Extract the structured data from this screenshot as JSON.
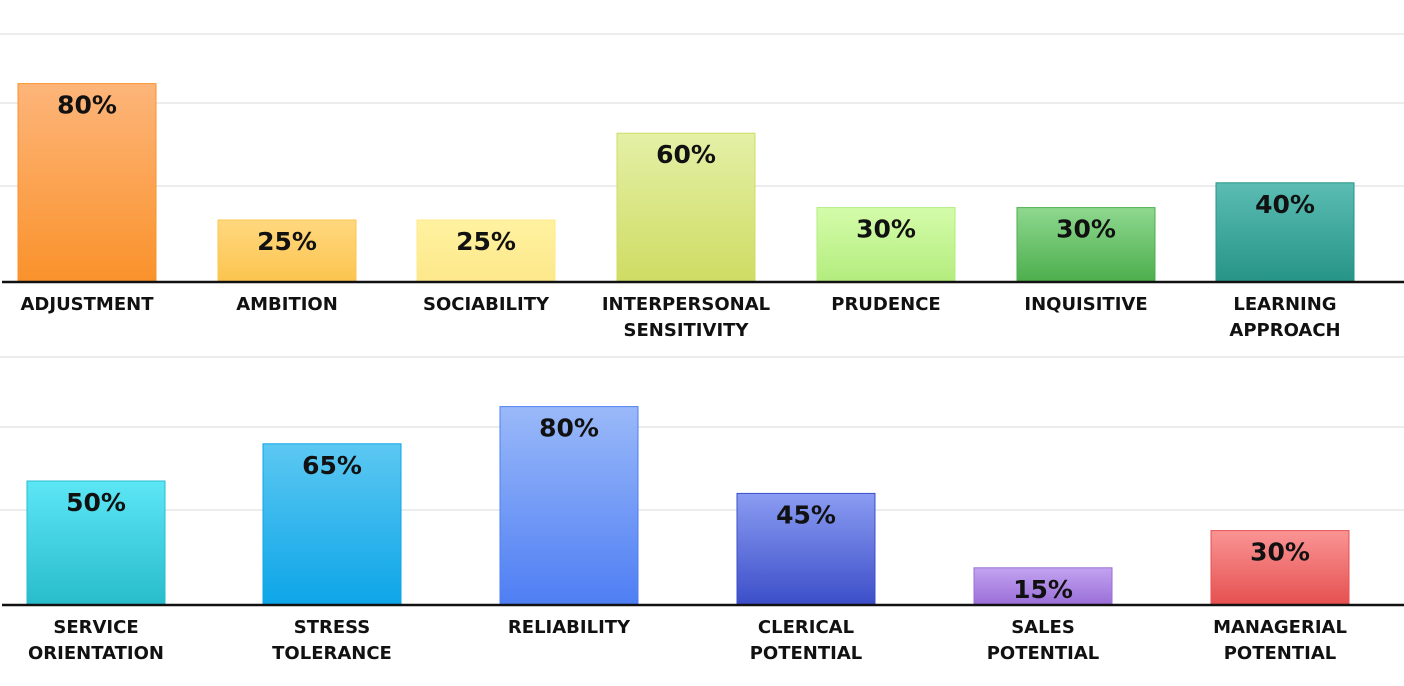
{
  "chart_data": [
    {
      "type": "bar",
      "categories": [
        [
          "ADJUSTMENT"
        ],
        [
          "AMBITION"
        ],
        [
          "SOCIABILITY"
        ],
        [
          "INTERPERSONAL",
          "SENSITIVITY"
        ],
        [
          "PRUDENCE"
        ],
        [
          "INQUISITIVE"
        ],
        [
          "LEARNING",
          "APPROACH"
        ]
      ],
      "values": [
        80,
        25,
        25,
        60,
        30,
        30,
        40
      ],
      "value_labels": [
        "80%",
        "25%",
        "25%",
        "60%",
        "30%",
        "30%",
        "40%"
      ],
      "ylim": [
        0,
        100
      ],
      "grid": true,
      "bar_colors": [
        [
          "#fdb57a",
          "#fa922b"
        ],
        [
          "#ffd87e",
          "#fcc44f"
        ],
        [
          "#fff2a0",
          "#fde88a"
        ],
        [
          "#e4f0a6",
          "#cfdc63"
        ],
        [
          "#d4fcaa",
          "#b3ec7d"
        ],
        [
          "#8ed88f",
          "#4cae4c"
        ],
        [
          "#5bbcb3",
          "#269487"
        ]
      ]
    },
    {
      "type": "bar",
      "categories": [
        [
          "SERVICE",
          "ORIENTATION"
        ],
        [
          "STRESS",
          "TOLERANCE"
        ],
        [
          "RELIABILITY"
        ],
        [
          "CLERICAL",
          "POTENTIAL"
        ],
        [
          "SALES",
          "POTENTIAL"
        ],
        [
          "MANAGERIAL",
          "POTENTIAL"
        ]
      ],
      "values": [
        50,
        65,
        80,
        45,
        15,
        30
      ],
      "value_labels": [
        "50%",
        "65%",
        "80%",
        "45%",
        "15%",
        "30%"
      ],
      "ylim": [
        0,
        100
      ],
      "grid": true,
      "bar_colors": [
        [
          "#5ce6f6",
          "#28bccb"
        ],
        [
          "#5cc8f2",
          "#0da5e8"
        ],
        [
          "#9ab9f9",
          "#4e7ef3"
        ],
        [
          "#8a9cf2",
          "#3c4ec8"
        ],
        [
          "#c2a3f0",
          "#9a6ed8"
        ],
        [
          "#fa9494",
          "#e65050"
        ]
      ]
    }
  ]
}
